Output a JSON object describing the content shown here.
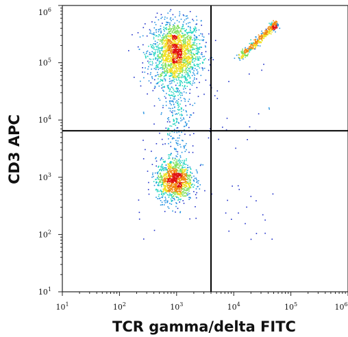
{
  "chart_data": {
    "type": "scatter",
    "title": "",
    "xlabel": "TCR gamma/delta FITC",
    "ylabel": "CD3 APC",
    "x_scale": "log",
    "y_scale": "log",
    "xlim": [
      10,
      1000000
    ],
    "ylim": [
      10,
      1000000
    ],
    "x_ticks": [
      {
        "base": "10",
        "exp": "1"
      },
      {
        "base": "10",
        "exp": "2"
      },
      {
        "base": "10",
        "exp": "3"
      },
      {
        "base": "10",
        "exp": "4"
      },
      {
        "base": "10",
        "exp": "5"
      },
      {
        "base": "10",
        "exp": "6"
      }
    ],
    "y_ticks": [
      {
        "base": "10",
        "exp": "1"
      },
      {
        "base": "10",
        "exp": "2"
      },
      {
        "base": "10",
        "exp": "3"
      },
      {
        "base": "10",
        "exp": "4"
      },
      {
        "base": "10",
        "exp": "5"
      },
      {
        "base": "10",
        "exp": "6"
      }
    ],
    "gates": {
      "x": 4000,
      "y": 6500
    },
    "populations": [
      {
        "center_x": 950,
        "center_y": 150000,
        "spread_logx": 0.22,
        "spread_logy": 0.28,
        "count": 1800
      },
      {
        "center_x": 900,
        "center_y": 900,
        "spread_logx": 0.16,
        "spread_logy": 0.18,
        "count": 1100
      },
      {
        "start_x": 12000,
        "start_y": 120000,
        "end_x": 55000,
        "end_y": 500000,
        "count": 420
      },
      {
        "center_x": 1000,
        "center_y": 12000,
        "spread_logx": 0.12,
        "spread_logy": 0.45,
        "count": 260
      }
    ],
    "colors": [
      "#1a2bc8",
      "#1f8fe0",
      "#22d4c0",
      "#7ee05a",
      "#f0e020",
      "#f08a10",
      "#e01010"
    ],
    "grid": false,
    "legend": "none"
  }
}
